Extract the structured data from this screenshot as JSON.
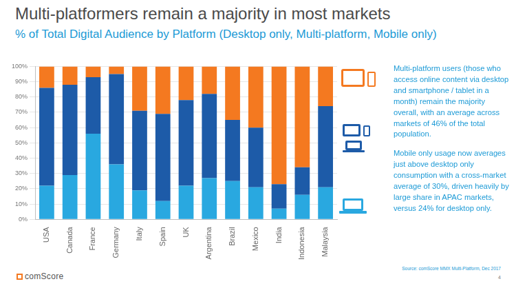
{
  "chart_data": {
    "type": "bar",
    "title": "Multi-platformers remain a majority in most markets",
    "subtitle": "% of Total Digital Audience by Platform (Desktop only, Multi-platform, Mobile only)",
    "categories": [
      "USA",
      "Canada",
      "France",
      "Germany",
      "Italy",
      "Spain",
      "UK",
      "Argentina",
      "Brazil",
      "Mexico",
      "India",
      "Indonesia",
      "Malaysia"
    ],
    "series": [
      {
        "color": "#29a8e0",
        "values": [
          22,
          29,
          56,
          36,
          19,
          12,
          22,
          27,
          25,
          21,
          7,
          16,
          21
        ]
      },
      {
        "color": "#1d5ba8",
        "values": [
          64,
          59,
          37,
          59,
          52,
          57,
          56,
          55,
          40,
          39,
          16,
          18,
          53
        ]
      },
      {
        "color": "#f47920",
        "values": [
          14,
          12,
          7,
          5,
          29,
          31,
          22,
          18,
          35,
          40,
          77,
          66,
          26
        ]
      }
    ],
    "stacked": true,
    "ylim": [
      0,
      100
    ],
    "yticks": [
      {
        "value": 0,
        "label": "0%"
      },
      {
        "value": 10,
        "label": "10%"
      },
      {
        "value": 20,
        "label": "20%"
      },
      {
        "value": 30,
        "label": "30%"
      },
      {
        "value": 40,
        "label": "40%"
      },
      {
        "value": 50,
        "label": "50%"
      },
      {
        "value": 60,
        "label": "60%"
      },
      {
        "value": 70,
        "label": "70%"
      },
      {
        "value": 80,
        "label": "80%"
      },
      {
        "value": 90,
        "label": "90%"
      },
      {
        "value": 100,
        "label": "100%"
      }
    ],
    "grid": true,
    "annotations": [
      "Multi-platform users (those who access online content via desktop and smartphone / tablet in a month) remain the majority overall, with an average across markets of 46% of the total population.",
      "Mobile only usage now averages just above desktop only consumption with a cross-market average of 30%, driven heavily by large share in APAC markets, versus 24% for desktop only."
    ],
    "source": "Source: comScore MMX Multi-Platform, Dec 2017",
    "logo": "comScore",
    "page_number": 4
  }
}
